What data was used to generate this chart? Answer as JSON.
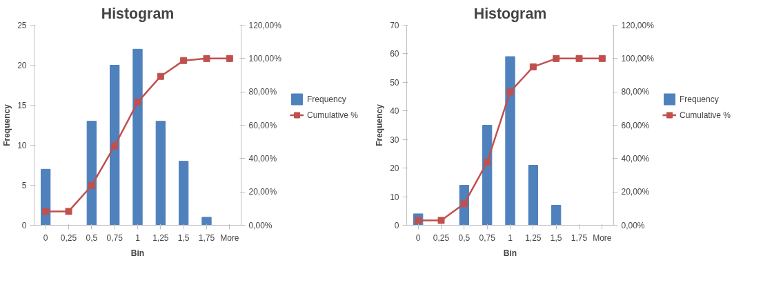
{
  "chart_data": [
    {
      "type": "bar",
      "title": "Histogram",
      "xlabel": "Bin",
      "ylabel": "Frequency",
      "categories": [
        "0",
        "0,25",
        "0,5",
        "0,75",
        "1",
        "1,25",
        "1,5",
        "1,75",
        "More"
      ],
      "series": [
        {
          "name": "Frequency",
          "type": "bar",
          "color": "#4f81bd",
          "values": [
            7,
            0,
            13,
            20,
            22,
            13,
            8,
            1,
            0
          ]
        },
        {
          "name": "Cumulative %",
          "type": "line",
          "axis": "y2",
          "color": "#c0504d",
          "marker": "square",
          "values": [
            8.3,
            8.3,
            23.8,
            47.6,
            73.8,
            89.3,
            98.8,
            100,
            100
          ]
        }
      ],
      "ylim": [
        0,
        25
      ],
      "yticks": [
        0,
        5,
        10,
        15,
        20,
        25
      ],
      "y2lim": [
        0,
        120
      ],
      "y2ticks": [
        {
          "value": 0,
          "label": "0,00%"
        },
        {
          "value": 20,
          "label": "20,00%"
        },
        {
          "value": 40,
          "label": "40,00%"
        },
        {
          "value": 60,
          "label": "60,00%"
        },
        {
          "value": 80,
          "label": "80,00%"
        },
        {
          "value": 100,
          "label": "100,00%"
        },
        {
          "value": 120,
          "label": "120,00%"
        }
      ],
      "legend": "right"
    },
    {
      "type": "bar",
      "title": "Histogram",
      "xlabel": "Bin",
      "ylabel": "Frequency",
      "categories": [
        "0",
        "0,25",
        "0,5",
        "0,75",
        "1",
        "1,25",
        "1,5",
        "1,75",
        "More"
      ],
      "series": [
        {
          "name": "Frequency",
          "type": "bar",
          "color": "#4f81bd",
          "values": [
            4,
            0,
            14,
            35,
            59,
            21,
            7,
            0,
            0
          ]
        },
        {
          "name": "Cumulative %",
          "type": "line",
          "axis": "y2",
          "color": "#c0504d",
          "marker": "square",
          "values": [
            2.9,
            2.9,
            12.9,
            37.9,
            80,
            95,
            100,
            100,
            100
          ]
        }
      ],
      "ylim": [
        0,
        70
      ],
      "yticks": [
        0,
        10,
        20,
        30,
        40,
        50,
        60,
        70
      ],
      "y2lim": [
        0,
        120
      ],
      "y2ticks": [
        {
          "value": 0,
          "label": "0,00%"
        },
        {
          "value": 20,
          "label": "20,00%"
        },
        {
          "value": 40,
          "label": "40,00%"
        },
        {
          "value": 60,
          "label": "60,00%"
        },
        {
          "value": 80,
          "label": "80,00%"
        },
        {
          "value": 100,
          "label": "100,00%"
        },
        {
          "value": 120,
          "label": "120,00%"
        }
      ],
      "legend": "right"
    }
  ]
}
